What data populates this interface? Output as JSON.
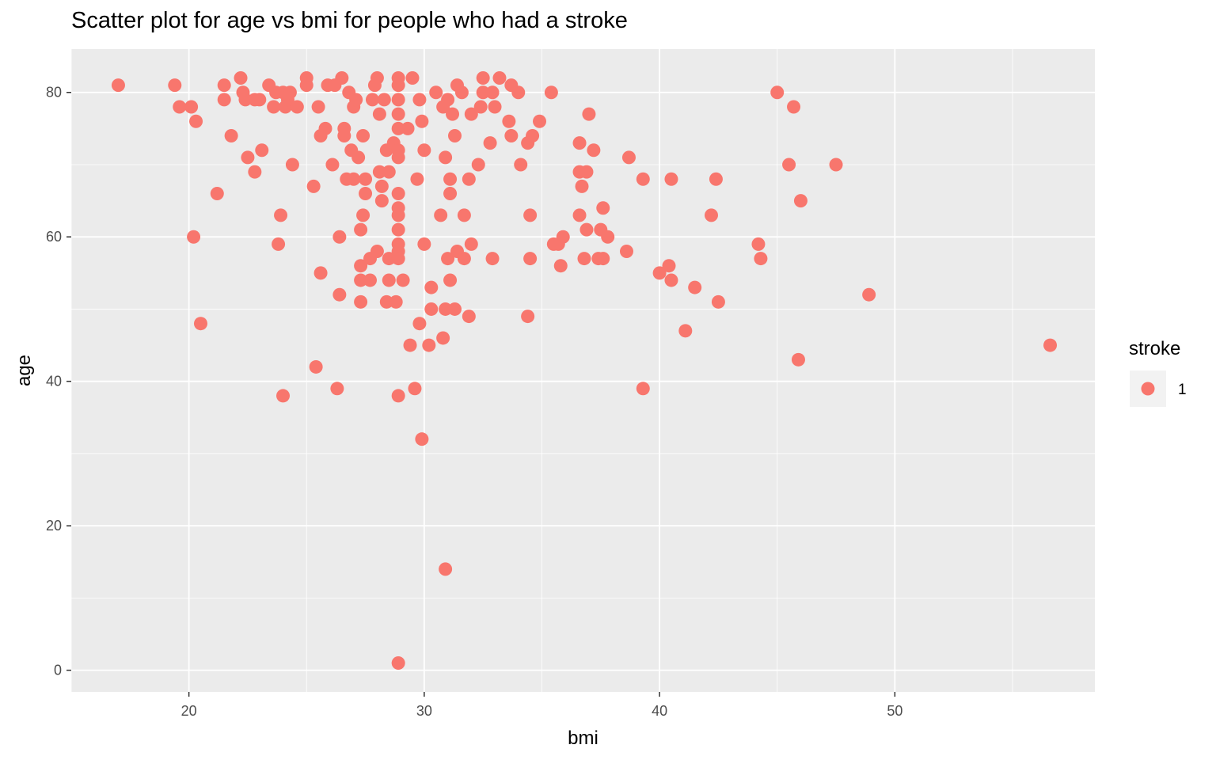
{
  "chart_data": {
    "type": "scatter",
    "title": "Scatter plot for age vs bmi for people who had a stroke",
    "xlabel": "bmi",
    "ylabel": "age",
    "xlim": [
      15,
      58.5
    ],
    "ylim": [
      -3,
      86
    ],
    "x_ticks": [
      20,
      30,
      40,
      50
    ],
    "y_ticks": [
      0,
      20,
      40,
      60,
      80
    ],
    "x_tick_labels": [
      "20",
      "30",
      "40",
      "50"
    ],
    "y_tick_labels": [
      "0",
      "20",
      "40",
      "60",
      "80"
    ],
    "grid": true,
    "legend": {
      "title": "stroke",
      "position": "right",
      "entries": [
        "1"
      ]
    },
    "series": [
      {
        "name": "1",
        "color": "#F8766D",
        "points": [
          [
            17.0,
            81
          ],
          [
            19.4,
            81
          ],
          [
            19.6,
            78
          ],
          [
            20.1,
            78
          ],
          [
            20.3,
            76
          ],
          [
            20.2,
            60
          ],
          [
            20.5,
            48
          ],
          [
            21.2,
            66
          ],
          [
            21.5,
            81
          ],
          [
            21.5,
            79
          ],
          [
            21.8,
            74
          ],
          [
            22.2,
            82
          ],
          [
            22.3,
            80
          ],
          [
            22.4,
            79
          ],
          [
            22.5,
            71
          ],
          [
            22.8,
            79
          ],
          [
            22.8,
            69
          ],
          [
            23.0,
            79
          ],
          [
            23.1,
            72
          ],
          [
            23.4,
            81
          ],
          [
            23.6,
            78
          ],
          [
            23.7,
            80
          ],
          [
            23.8,
            59
          ],
          [
            23.9,
            63
          ],
          [
            24.0,
            38
          ],
          [
            24.0,
            80
          ],
          [
            24.1,
            78
          ],
          [
            24.2,
            79
          ],
          [
            24.3,
            80
          ],
          [
            24.4,
            70
          ],
          [
            24.6,
            78
          ],
          [
            25.0,
            82
          ],
          [
            25.0,
            81
          ],
          [
            25.3,
            67
          ],
          [
            25.4,
            42
          ],
          [
            25.5,
            78
          ],
          [
            25.6,
            74
          ],
          [
            25.6,
            55
          ],
          [
            25.8,
            75
          ],
          [
            25.9,
            81
          ],
          [
            26.1,
            70
          ],
          [
            26.2,
            81
          ],
          [
            26.3,
            39
          ],
          [
            26.4,
            60
          ],
          [
            26.4,
            52
          ],
          [
            26.5,
            82
          ],
          [
            26.6,
            75
          ],
          [
            26.6,
            74
          ],
          [
            26.7,
            68
          ],
          [
            26.8,
            80
          ],
          [
            26.9,
            72
          ],
          [
            27.0,
            78
          ],
          [
            27.0,
            68
          ],
          [
            27.1,
            79
          ],
          [
            27.2,
            71
          ],
          [
            27.3,
            56
          ],
          [
            27.3,
            54
          ],
          [
            27.3,
            51
          ],
          [
            27.3,
            61
          ],
          [
            27.4,
            63
          ],
          [
            27.4,
            74
          ],
          [
            27.5,
            66
          ],
          [
            27.5,
            68
          ],
          [
            27.7,
            57
          ],
          [
            27.7,
            54
          ],
          [
            27.8,
            79
          ],
          [
            27.9,
            81
          ],
          [
            28.0,
            82
          ],
          [
            28.0,
            58
          ],
          [
            28.1,
            69
          ],
          [
            28.1,
            77
          ],
          [
            28.2,
            67
          ],
          [
            28.2,
            65
          ],
          [
            28.3,
            79
          ],
          [
            28.4,
            51
          ],
          [
            28.4,
            72
          ],
          [
            28.5,
            54
          ],
          [
            28.5,
            69
          ],
          [
            28.5,
            57
          ],
          [
            28.7,
            73
          ],
          [
            28.8,
            51
          ],
          [
            28.9,
            38
          ],
          [
            28.9,
            1
          ],
          [
            28.9,
            71
          ],
          [
            28.9,
            66
          ],
          [
            28.9,
            64
          ],
          [
            28.9,
            63
          ],
          [
            28.9,
            61
          ],
          [
            28.9,
            59
          ],
          [
            28.9,
            58
          ],
          [
            28.9,
            57
          ],
          [
            28.9,
            72
          ],
          [
            28.9,
            75
          ],
          [
            28.9,
            77
          ],
          [
            28.9,
            79
          ],
          [
            28.9,
            81
          ],
          [
            28.9,
            82
          ],
          [
            29.1,
            54
          ],
          [
            29.3,
            75
          ],
          [
            29.4,
            45
          ],
          [
            29.5,
            82
          ],
          [
            29.6,
            39
          ],
          [
            29.7,
            68
          ],
          [
            29.8,
            79
          ],
          [
            29.8,
            48
          ],
          [
            29.9,
            32
          ],
          [
            29.9,
            76
          ],
          [
            30.0,
            59
          ],
          [
            30.0,
            72
          ],
          [
            30.2,
            45
          ],
          [
            30.3,
            53
          ],
          [
            30.3,
            50
          ],
          [
            30.5,
            80
          ],
          [
            30.7,
            63
          ],
          [
            30.8,
            78
          ],
          [
            30.8,
            46
          ],
          [
            30.9,
            71
          ],
          [
            30.9,
            14
          ],
          [
            30.9,
            50
          ],
          [
            31.0,
            57
          ],
          [
            31.0,
            79
          ],
          [
            31.1,
            68
          ],
          [
            31.1,
            66
          ],
          [
            31.1,
            54
          ],
          [
            31.2,
            77
          ],
          [
            31.3,
            74
          ],
          [
            31.3,
            50
          ],
          [
            31.4,
            58
          ],
          [
            31.4,
            81
          ],
          [
            31.6,
            80
          ],
          [
            31.7,
            57
          ],
          [
            31.7,
            63
          ],
          [
            31.9,
            49
          ],
          [
            31.9,
            68
          ],
          [
            32.0,
            59
          ],
          [
            32.0,
            77
          ],
          [
            32.3,
            70
          ],
          [
            32.4,
            78
          ],
          [
            32.5,
            80
          ],
          [
            32.5,
            82
          ],
          [
            32.8,
            73
          ],
          [
            32.9,
            57
          ],
          [
            32.9,
            80
          ],
          [
            33.0,
            78
          ],
          [
            33.2,
            82
          ],
          [
            33.6,
            76
          ],
          [
            33.7,
            74
          ],
          [
            33.7,
            81
          ],
          [
            34.0,
            80
          ],
          [
            34.1,
            70
          ],
          [
            34.4,
            49
          ],
          [
            34.4,
            73
          ],
          [
            34.5,
            63
          ],
          [
            34.5,
            57
          ],
          [
            34.6,
            74
          ],
          [
            34.9,
            76
          ],
          [
            35.4,
            80
          ],
          [
            35.5,
            59
          ],
          [
            35.7,
            59
          ],
          [
            35.8,
            56
          ],
          [
            35.9,
            60
          ],
          [
            36.6,
            73
          ],
          [
            36.6,
            69
          ],
          [
            36.6,
            63
          ],
          [
            36.7,
            67
          ],
          [
            36.8,
            57
          ],
          [
            36.9,
            61
          ],
          [
            36.9,
            69
          ],
          [
            37.0,
            77
          ],
          [
            37.2,
            72
          ],
          [
            37.4,
            57
          ],
          [
            37.5,
            61
          ],
          [
            37.6,
            64
          ],
          [
            37.6,
            57
          ],
          [
            37.8,
            60
          ],
          [
            38.6,
            58
          ],
          [
            38.7,
            71
          ],
          [
            39.3,
            68
          ],
          [
            39.3,
            39
          ],
          [
            40.0,
            55
          ],
          [
            40.4,
            56
          ],
          [
            40.5,
            54
          ],
          [
            40.5,
            68
          ],
          [
            41.1,
            47
          ],
          [
            41.5,
            53
          ],
          [
            42.2,
            63
          ],
          [
            42.4,
            68
          ],
          [
            42.5,
            51
          ],
          [
            44.2,
            59
          ],
          [
            44.3,
            57
          ],
          [
            45.0,
            80
          ],
          [
            45.5,
            70
          ],
          [
            45.7,
            78
          ],
          [
            45.9,
            43
          ],
          [
            46.0,
            65
          ],
          [
            47.5,
            70
          ],
          [
            48.9,
            52
          ],
          [
            56.6,
            45
          ]
        ]
      }
    ]
  }
}
